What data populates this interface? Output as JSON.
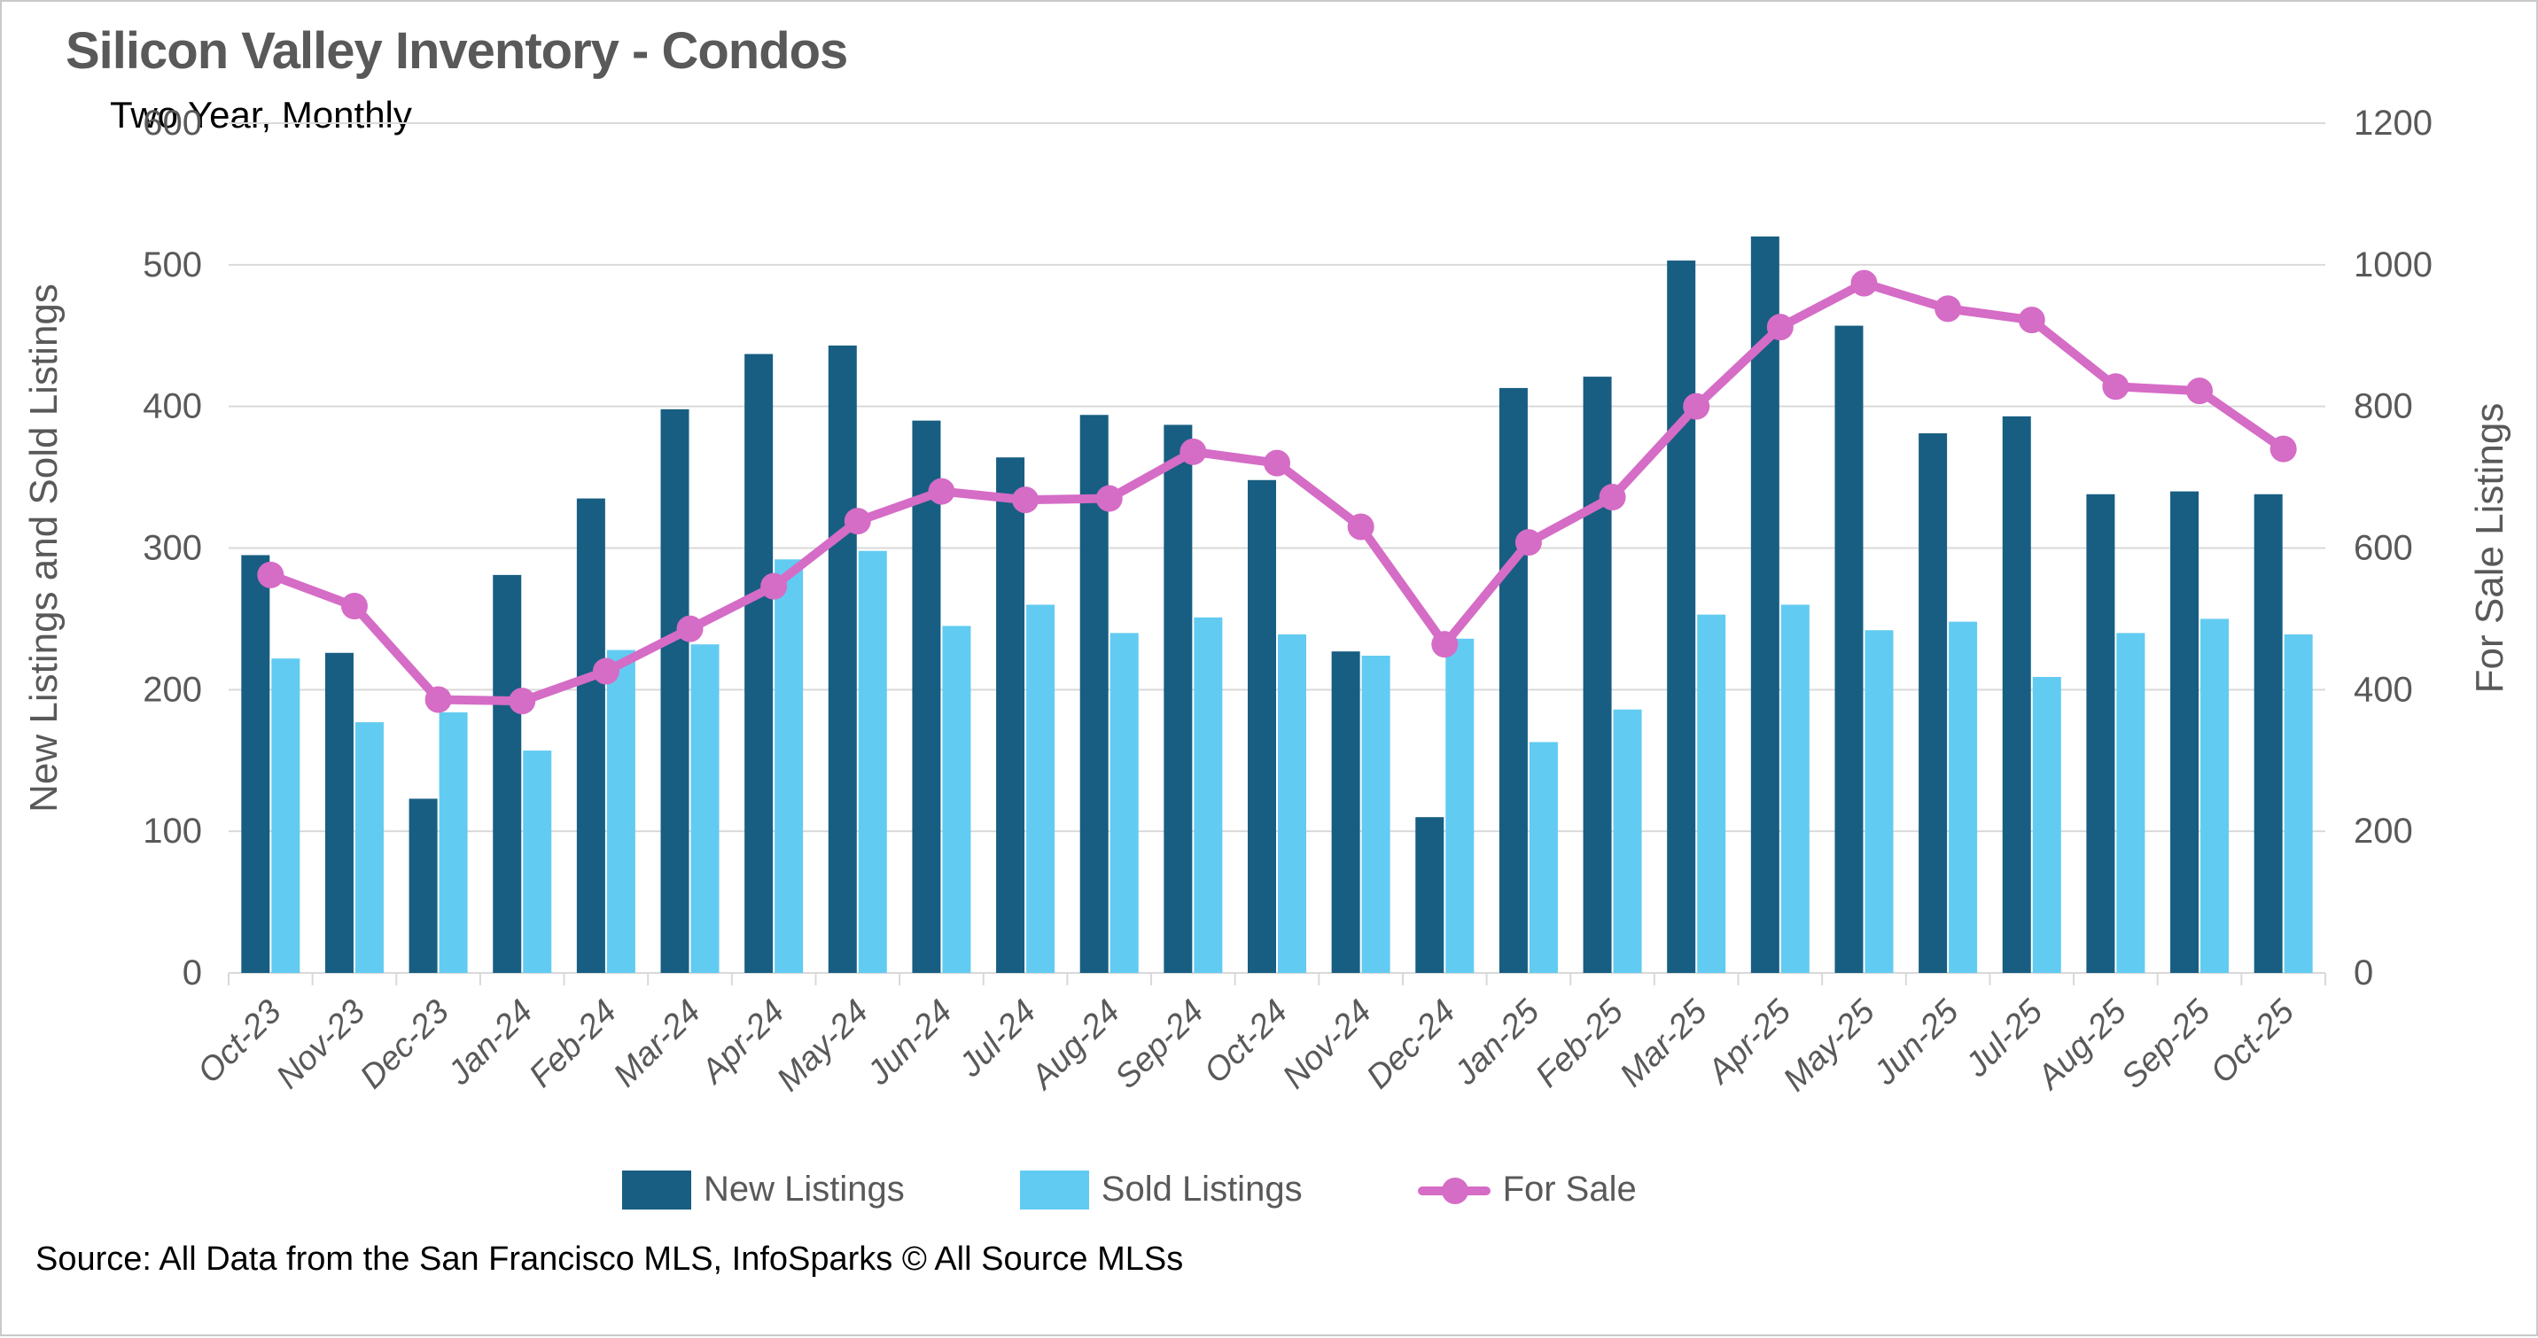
{
  "header": {
    "title": "Silicon Valley Inventory - Condos",
    "subtitle": "Two Year, Monthly"
  },
  "source_note": "Source: All Data from the San Francisco MLS, InfoSparks © All Source MLSs",
  "legend": {
    "items": [
      {
        "label": "New Listings",
        "marker": "swatch",
        "color": "#175E82"
      },
      {
        "label": "Sold Listings",
        "marker": "swatch",
        "color": "#62CBF1"
      },
      {
        "label": "For Sale",
        "marker": "line-dot",
        "color": "#D56CC6"
      }
    ]
  },
  "colors": {
    "new_listings": "#175E82",
    "sold_listings": "#62CBF1",
    "for_sale": "#D56CC6",
    "gridline": "#d9d9d9",
    "axis_text": "#595959",
    "title_text": "#595959"
  },
  "chart_data": {
    "type": "bar",
    "subtype": "grouped-bars-with-line",
    "title": "Silicon Valley Inventory - Condos",
    "subtitle": "Two Year, Monthly",
    "grid": true,
    "legend_position": "bottom",
    "categories": [
      "Oct-23",
      "Nov-23",
      "Dec-23",
      "Jan-24",
      "Feb-24",
      "Mar-24",
      "Apr-24",
      "May-24",
      "Jun-24",
      "Jul-24",
      "Aug-24",
      "Sep-24",
      "Oct-24",
      "Nov-24",
      "Dec-24",
      "Jan-25",
      "Feb-25",
      "Mar-25",
      "Apr-25",
      "May-25",
      "Jun-25",
      "Jul-25",
      "Aug-25",
      "Sep-25",
      "Oct-25"
    ],
    "series": [
      {
        "name": "New Listings",
        "type": "bar",
        "axis": "left",
        "color": "#175E82",
        "values": [
          295,
          226,
          123,
          281,
          335,
          398,
          437,
          443,
          390,
          364,
          394,
          387,
          348,
          227,
          110,
          413,
          421,
          503,
          520,
          457,
          381,
          393,
          338,
          340,
          338
        ]
      },
      {
        "name": "Sold Listings",
        "type": "bar",
        "axis": "left",
        "color": "#62CBF1",
        "values": [
          222,
          177,
          184,
          157,
          228,
          232,
          292,
          298,
          245,
          260,
          240,
          251,
          239,
          224,
          236,
          163,
          186,
          253,
          260,
          242,
          248,
          209,
          240,
          250,
          239
        ]
      },
      {
        "name": "For Sale",
        "type": "line",
        "axis": "right",
        "color": "#D56CC6",
        "values": [
          562,
          518,
          386,
          384,
          426,
          486,
          546,
          638,
          680,
          668,
          670,
          736,
          720,
          630,
          464,
          608,
          672,
          800,
          912,
          974,
          938,
          922,
          828,
          822,
          740
        ]
      }
    ],
    "left_axis": {
      "title": "New Listings and Sold Listings",
      "min": 0,
      "max": 600,
      "step": 100,
      "tick_labels": [
        "0",
        "100",
        "200",
        "300",
        "400",
        "500",
        "600"
      ]
    },
    "right_axis": {
      "title": "For Sale Listings",
      "min": 0,
      "max": 1200,
      "step": 200,
      "tick_labels": [
        "0",
        "200",
        "400",
        "600",
        "800",
        "1000",
        "1200"
      ]
    }
  }
}
